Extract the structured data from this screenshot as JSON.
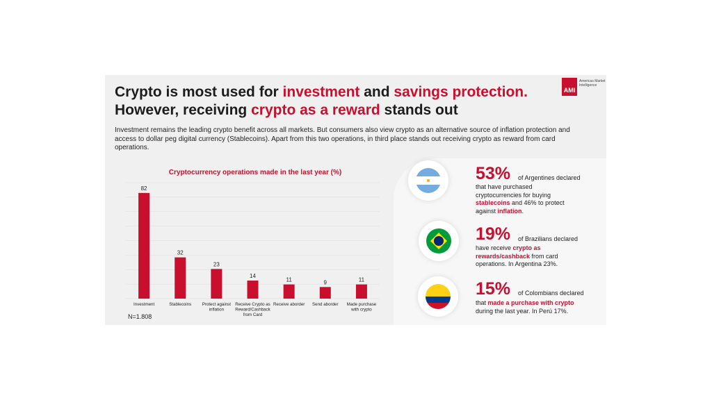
{
  "logo": {
    "mark": "AMI",
    "name": "Americas Market Intelligence"
  },
  "headline": {
    "line1_a": "Crypto is most used for ",
    "line1_b": "investment",
    "line1_c": " and ",
    "line1_d": "savings protection.",
    "line2_a": "However, receiving ",
    "line2_b": "crypto as a reward",
    "line2_c": " stands out"
  },
  "intro": "Investment remains the leading crypto benefit across all markets. But consumers also view crypto as an alternative source of inflation protection and access to  dollar peg digital currency (Stablecoins). Apart from this two operations, in third place stands out receiving crypto as reward from card operations.",
  "colors": {
    "accent": "#c8102e",
    "bar": "#c8102e"
  },
  "chart_data": {
    "type": "bar",
    "title": "Cryptocurrency operations made in the last year (%)",
    "categories": [
      "Investment",
      "Stablecoins",
      "Protect against inflation",
      "Receive Crypto as Reward/Cashback from Card",
      "Receive aborder",
      "Send aborder",
      "Made purchase with crypto"
    ],
    "category_lines": [
      [
        "Investment"
      ],
      [
        "Stablecoins"
      ],
      [
        "Protect against",
        "inflation"
      ],
      [
        "Receive Crypto as",
        "Reward/Cashback",
        "from Card"
      ],
      [
        "Receive aborder"
      ],
      [
        "Send aborder"
      ],
      [
        "Made purchase",
        "with crypto"
      ]
    ],
    "values": [
      82,
      32,
      23,
      14,
      11,
      9,
      11
    ],
    "ylim": [
      0,
      90
    ],
    "grid": true,
    "data_labels": true
  },
  "sample_size": "N=1.808",
  "stats": [
    {
      "flag_icon": "argentina-flag-icon",
      "value": "53%",
      "lead": "of Argentines declared",
      "desc_parts": [
        {
          "text": "that have purchased cryptocurrencies for buying ",
          "bold": false
        },
        {
          "text": "stablecoins",
          "bold": true
        },
        {
          "text": " and 46% to protect against ",
          "bold": false
        },
        {
          "text": "inflation",
          "bold": true
        },
        {
          "text": ".",
          "bold": false
        }
      ]
    },
    {
      "flag_icon": "brazil-flag-icon",
      "value": "19%",
      "lead": "of Brazilians declared",
      "desc_parts": [
        {
          "text": "have receive ",
          "bold": false
        },
        {
          "text": "crypto as rewards/cashback",
          "bold": true
        },
        {
          "text": " from card operations. In Argentina 23%.",
          "bold": false
        }
      ]
    },
    {
      "flag_icon": "colombia-flag-icon",
      "value": "15%",
      "lead": "of Colombians declared",
      "desc_parts": [
        {
          "text": "that ",
          "bold": false
        },
        {
          "text": "made a purchase with crypto",
          "bold": true
        },
        {
          "text": " during the last year. In Perú 17%.",
          "bold": false
        }
      ]
    }
  ]
}
